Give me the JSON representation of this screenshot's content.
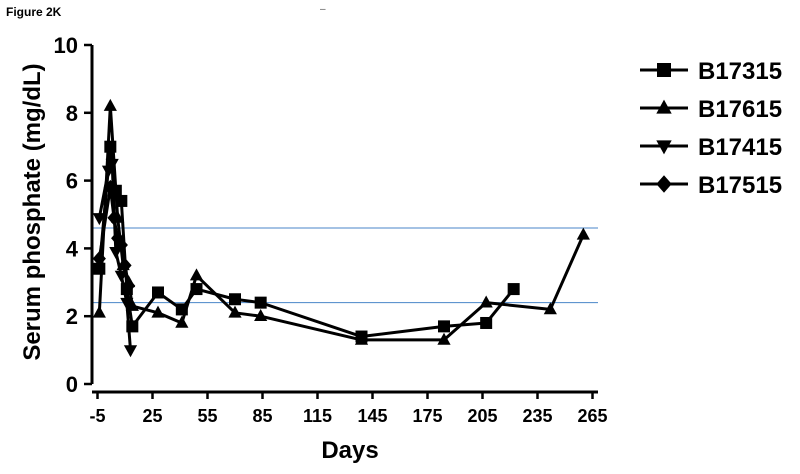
{
  "figure_label": "Figure 2K",
  "chart_data": {
    "type": "line",
    "title": "",
    "xlabel": "Days",
    "ylabel": "Serum phosphate (mg/dL)",
    "xlim": [
      -8,
      268
    ],
    "ylim": [
      0,
      10
    ],
    "x_ticks": [
      -5,
      25,
      55,
      85,
      115,
      145,
      175,
      205,
      235,
      265
    ],
    "y_ticks": [
      0,
      2,
      4,
      6,
      8,
      10
    ],
    "grid": false,
    "legend_position": "right",
    "reference_lines": [
      {
        "axis": "y",
        "value": 4.6,
        "color": "#4a86c8"
      },
      {
        "axis": "y",
        "value": 2.4,
        "color": "#4a86c8"
      }
    ],
    "series": [
      {
        "name": "B17315",
        "marker": "square",
        "points": [
          [
            -4,
            3.4
          ],
          [
            2,
            7.0
          ],
          [
            5,
            5.7
          ],
          [
            8,
            5.4
          ],
          [
            11,
            2.8
          ],
          [
            14,
            1.7
          ],
          [
            28,
            2.7
          ],
          [
            41,
            2.2
          ],
          [
            49,
            2.8
          ],
          [
            70,
            2.5
          ],
          [
            84,
            2.4
          ],
          [
            139,
            1.4
          ],
          [
            184,
            1.7
          ],
          [
            207,
            1.8
          ],
          [
            222,
            2.8
          ]
        ]
      },
      {
        "name": "B17615",
        "marker": "triangle-up",
        "points": [
          [
            -4,
            2.1
          ],
          [
            2,
            8.2
          ],
          [
            6,
            4.9
          ],
          [
            9,
            3.5
          ],
          [
            12,
            3.0
          ],
          [
            14,
            2.3
          ],
          [
            28,
            2.1
          ],
          [
            41,
            1.8
          ],
          [
            49,
            3.2
          ],
          [
            70,
            2.1
          ],
          [
            84,
            2.0
          ],
          [
            139,
            1.3
          ],
          [
            184,
            1.3
          ],
          [
            207,
            2.4
          ],
          [
            242,
            2.2
          ],
          [
            260,
            4.4
          ]
        ]
      },
      {
        "name": "B17415",
        "marker": "triangle-down",
        "points": [
          [
            -4,
            4.9
          ],
          [
            1,
            6.3
          ],
          [
            3,
            6.5
          ],
          [
            5,
            3.9
          ],
          [
            8,
            3.2
          ],
          [
            11,
            2.4
          ],
          [
            13,
            1.0
          ]
        ]
      },
      {
        "name": "B17515",
        "marker": "diamond",
        "points": [
          [
            -4,
            3.7
          ],
          [
            2,
            5.8
          ],
          [
            4,
            4.9
          ],
          [
            6,
            4.3
          ],
          [
            8,
            4.1
          ],
          [
            10,
            3.5
          ],
          [
            12,
            2.9
          ]
        ]
      }
    ]
  },
  "stray_mark": "–"
}
